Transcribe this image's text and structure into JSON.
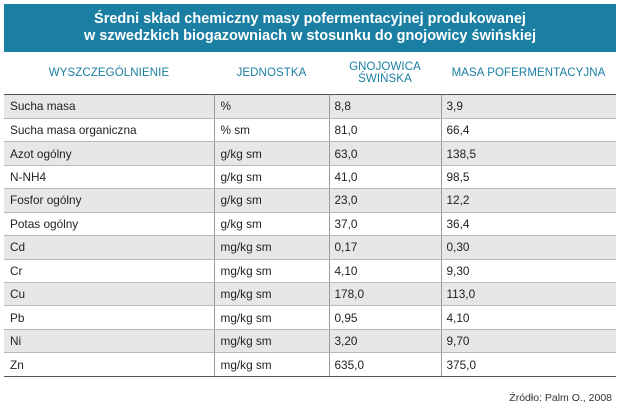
{
  "title": {
    "line1": "Średni skład chemiczny masy pofermentacyjnej produkowanej",
    "line2": "w szwedzkich biogazowniach w stosunku do gnojowicy świńskiej"
  },
  "headers": {
    "col1": "WYSZCZEGÓLNIENIE",
    "col2": "JEDNOSTKA",
    "col3_line1": "GNOJOWICA",
    "col3_line2": "ŚWIŃSKA",
    "col4": "MASA POFERMENTACYJNA"
  },
  "rows": [
    {
      "name": "Sucha masa",
      "unit": "%",
      "slurry": "8,8",
      "digestate": "3,9"
    },
    {
      "name": "Sucha masa organiczna",
      "unit": "% sm",
      "slurry": "81,0",
      "digestate": "66,4"
    },
    {
      "name": "Azot ogólny",
      "unit": "g/kg sm",
      "slurry": "63,0",
      "digestate": "138,5"
    },
    {
      "name": "N-NH4",
      "unit": "g/kg sm",
      "slurry": "41,0",
      "digestate": "98,5"
    },
    {
      "name": "Fosfor ogólny",
      "unit": "g/kg sm",
      "slurry": "23,0",
      "digestate": "12,2"
    },
    {
      "name": "Potas ogólny",
      "unit": "g/kg sm",
      "slurry": "37,0",
      "digestate": "36,4"
    },
    {
      "name": "Cd",
      "unit": "mg/kg sm",
      "slurry": "0,17",
      "digestate": "0,30"
    },
    {
      "name": "Cr",
      "unit": "mg/kg sm",
      "slurry": "4,10",
      "digestate": "9,30"
    },
    {
      "name": "Cu",
      "unit": "mg/kg sm",
      "slurry": "178,0",
      "digestate": "113,0"
    },
    {
      "name": "Pb",
      "unit": "mg/kg sm",
      "slurry": "0,95",
      "digestate": "4,10"
    },
    {
      "name": "Ni",
      "unit": "mg/kg sm",
      "slurry": "3,20",
      "digestate": "9,70"
    },
    {
      "name": "Zn",
      "unit": "mg/kg sm",
      "slurry": "635,0",
      "digestate": "375,0"
    }
  ],
  "source": "Źródło: Palm O., 2008",
  "colors": {
    "accent": "#1a7fa3",
    "row_shade": "#e6e7e8"
  }
}
